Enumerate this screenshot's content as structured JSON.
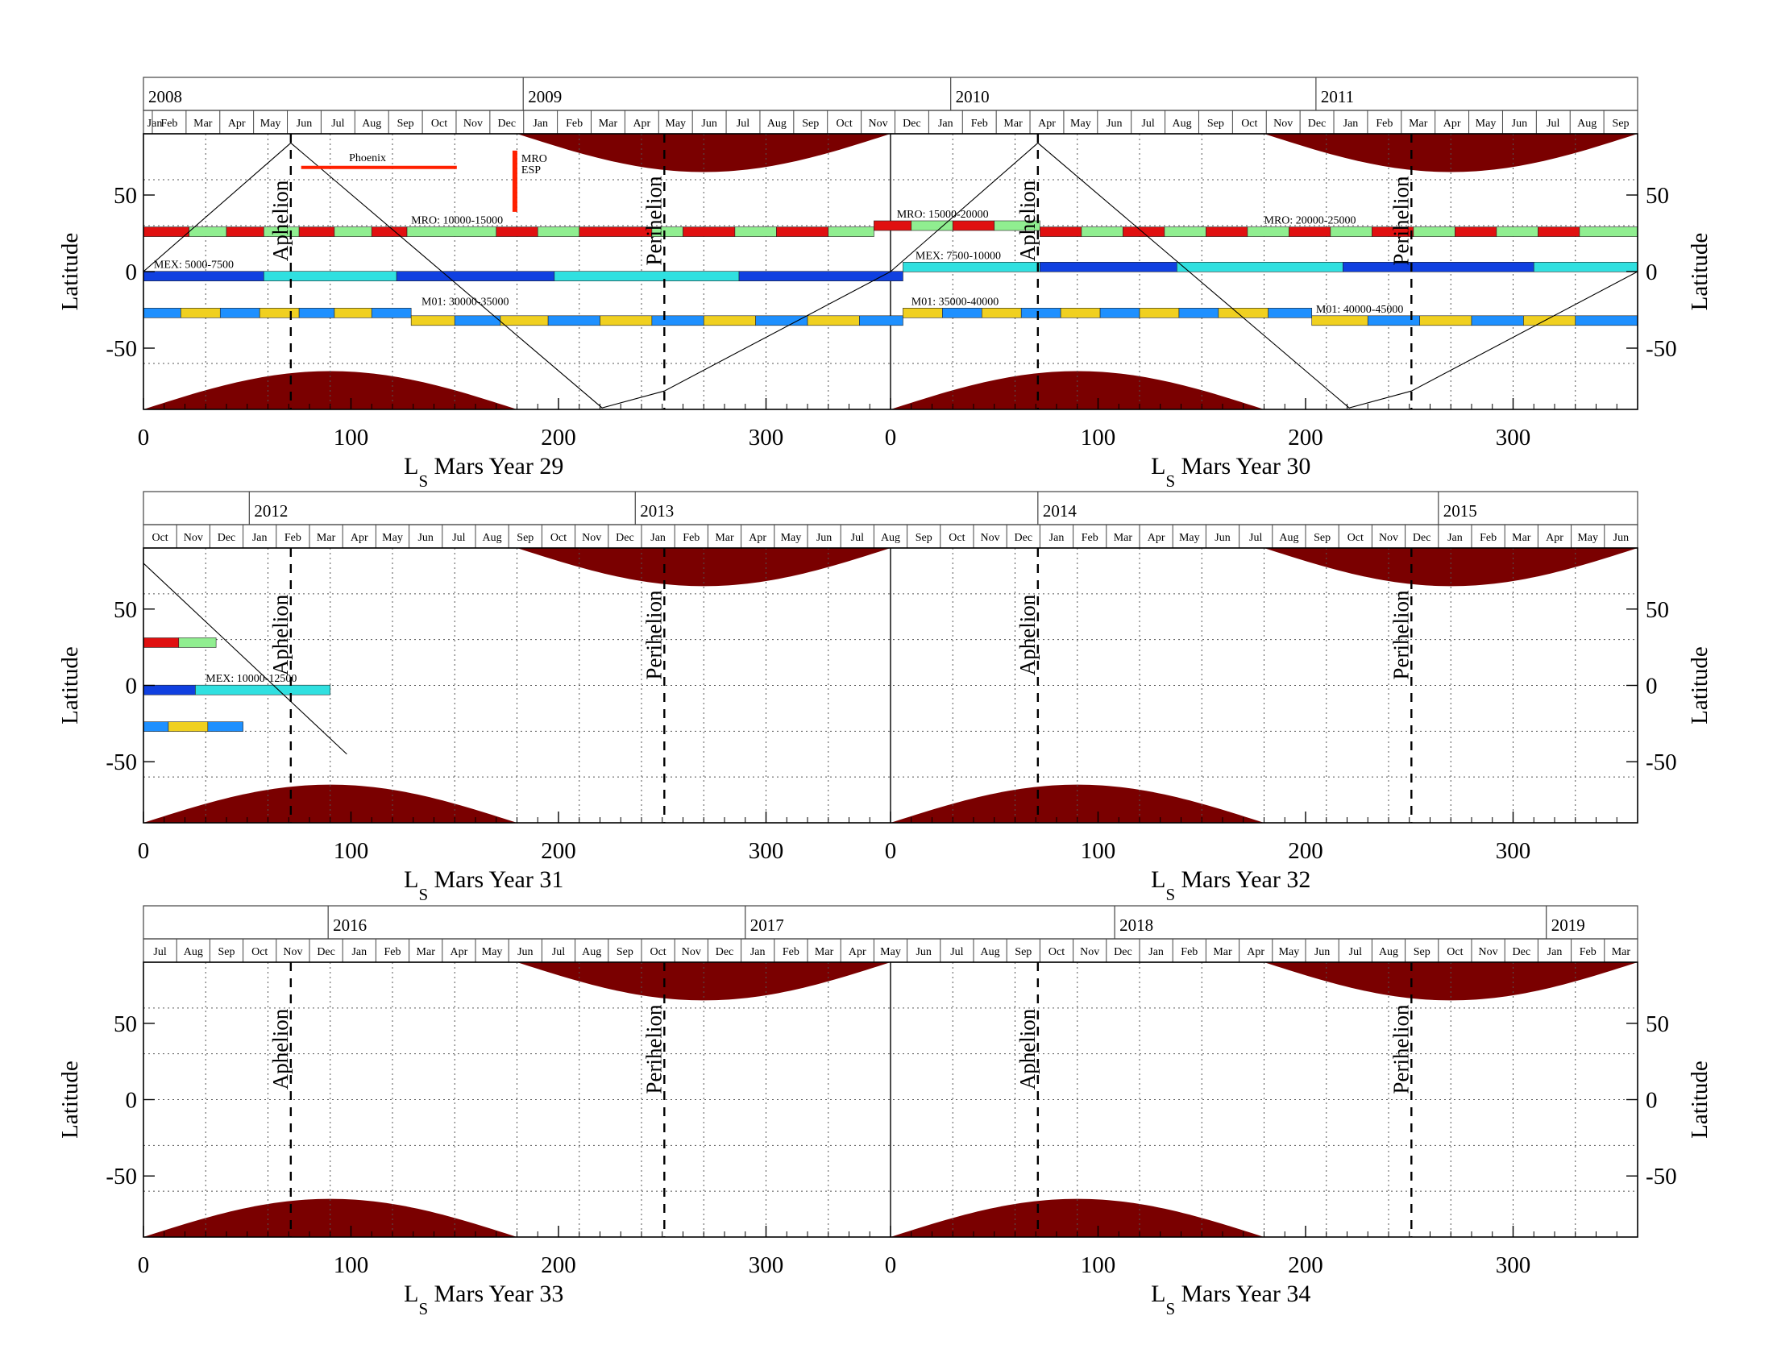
{
  "colors": {
    "polar_fill": "#7a0000",
    "mro_red": "#e01010",
    "mro_green": "#90ee90",
    "mex_blue": "#1040e0",
    "mex_cyan": "#30e0e0",
    "m01_blue": "#1e90ff",
    "m01_yellow": "#f0d020",
    "event_red": "#ff2000"
  },
  "chart_data": {
    "type": "timeline",
    "x_label_prefix": "L",
    "x_label_subscript": "S",
    "ylabel": "Latitude",
    "ylim": [
      -90,
      90
    ],
    "yticks": [
      "50",
      "0",
      "-50"
    ],
    "ytick_values": [
      50,
      0,
      -50
    ],
    "xticks": [
      "0",
      "100",
      "200",
      "300"
    ],
    "xtick_values": [
      0,
      100,
      200,
      300
    ],
    "aphelion_label": "Aphelion",
    "perihelion_label": "Perihelion",
    "aphelion_ls": 71,
    "perihelion_ls": 251,
    "north_cap_range": [
      180,
      360
    ],
    "south_cap_range": [
      0,
      180
    ],
    "polar_cap_edge_lat": 65,
    "panels": [
      {
        "mars_years": [
          "Mars Year 29",
          "Mars Year 30"
        ],
        "years": [
          {
            "label": "2008",
            "ls": -12
          },
          {
            "label": "2009",
            "ls": 183
          },
          {
            "label": "2010",
            "ls": 389
          },
          {
            "label": "2011",
            "ls": 565
          }
        ],
        "months": [
          "Jan",
          "Feb",
          "Mar",
          "Apr",
          "May",
          "Jun",
          "Jul",
          "Aug",
          "Sep",
          "Oct",
          "Nov",
          "Dec",
          "Jan",
          "Feb",
          "Mar",
          "Apr",
          "May",
          "Jun",
          "Jul",
          "Aug",
          "Sep",
          "Oct",
          "Nov",
          "Dec",
          "Jan",
          "Feb",
          "Mar",
          "Apr",
          "May",
          "Jun",
          "Jul",
          "Aug",
          "Sep",
          "Oct",
          "Nov",
          "Dec",
          "Jan",
          "Feb",
          "Mar",
          "Apr",
          "May",
          "Jun",
          "Jul",
          "Aug",
          "Sep"
        ],
        "month_start": -12,
        "month_end": 720,
        "subsolar": {
          "points": [
            [
              0,
              0
            ],
            [
              71,
              84
            ],
            [
              221,
              -89
            ],
            [
              251,
              -78
            ],
            [
              360,
              0
            ],
            [
              431,
              84
            ],
            [
              581,
              -89
            ],
            [
              611,
              -78
            ],
            [
              720,
              0
            ]
          ]
        },
        "missions": [
          {
            "label": "MRO: 10000-15000",
            "label_ls": 129,
            "lat": 26,
            "start": 0,
            "end": 360,
            "colors": [
              "mro_red",
              "mro_green"
            ],
            "segments": [
              [
                0,
                22
              ],
              [
                22,
                40
              ],
              [
                40,
                58
              ],
              [
                58,
                75
              ],
              [
                75,
                92
              ],
              [
                92,
                110
              ],
              [
                110,
                127
              ],
              [
                127,
                170
              ],
              [
                170,
                190
              ],
              [
                190,
                210
              ],
              [
                210,
                245
              ],
              [
                245,
                260
              ],
              [
                260,
                285
              ],
              [
                285,
                305
              ],
              [
                305,
                330
              ],
              [
                330,
                352
              ]
            ]
          },
          {
            "label": "MRO: 15000-20000",
            "label_ls": 363,
            "lat": 30,
            "start": 352,
            "end": 432,
            "colors": [
              "mro_red",
              "mro_green"
            ],
            "segments": [
              [
                352,
                370
              ],
              [
                370,
                390
              ],
              [
                390,
                410
              ],
              [
                410,
                432
              ]
            ]
          },
          {
            "label": "MRO: 20000-25000",
            "label_ls": 540,
            "lat": 26,
            "start": 432,
            "end": 720,
            "colors": [
              "mro_red",
              "mro_green"
            ],
            "segments": [
              [
                432,
                452
              ],
              [
                452,
                472
              ],
              [
                472,
                492
              ],
              [
                492,
                512
              ],
              [
                512,
                532
              ],
              [
                532,
                552
              ],
              [
                552,
                572
              ],
              [
                572,
                592
              ],
              [
                592,
                612
              ],
              [
                612,
                632
              ],
              [
                632,
                652
              ],
              [
                652,
                672
              ],
              [
                672,
                692
              ],
              [
                692,
                720
              ]
            ]
          },
          {
            "label": "MEX: 5000-7500",
            "label_ls": 5,
            "lat": -3,
            "start": 0,
            "end": 366,
            "colors": [
              "mex_blue",
              "mex_cyan"
            ],
            "segments": [
              [
                0,
                58
              ],
              [
                58,
                122
              ],
              [
                122,
                198
              ],
              [
                198,
                287
              ],
              [
                287,
                366
              ]
            ]
          },
          {
            "label": "MEX: 7500-10000",
            "label_ls": 372,
            "lat": 3,
            "start": 366,
            "end": 432,
            "colors": [
              "mex_cyan"
            ],
            "segments": [
              [
                366,
                432
              ]
            ]
          },
          {
            "label": "",
            "label_ls": 0,
            "lat": 3,
            "start": 432,
            "end": 720,
            "colors": [
              "mex_blue",
              "mex_cyan"
            ],
            "segments": [
              [
                432,
                498
              ],
              [
                498,
                578
              ],
              [
                578,
                670
              ],
              [
                670,
                720
              ]
            ]
          },
          {
            "label": "M01: 30000-35000",
            "label_ls": 134,
            "lat": -27,
            "start": 0,
            "end": 129,
            "colors": [
              "m01_blue",
              "m01_yellow"
            ],
            "segments": [
              [
                0,
                18
              ],
              [
                18,
                37
              ],
              [
                37,
                56
              ],
              [
                56,
                75
              ],
              [
                75,
                92
              ],
              [
                92,
                110
              ],
              [
                110,
                129
              ]
            ]
          },
          {
            "label": "",
            "label_ls": 0,
            "lat": -32,
            "start": 129,
            "end": 366,
            "colors": [
              "m01_yellow",
              "m01_blue"
            ],
            "segments": [
              [
                129,
                150
              ],
              [
                150,
                172
              ],
              [
                172,
                195
              ],
              [
                195,
                220
              ],
              [
                220,
                245
              ],
              [
                245,
                270
              ],
              [
                270,
                295
              ],
              [
                295,
                320
              ],
              [
                320,
                345
              ],
              [
                345,
                366
              ]
            ]
          },
          {
            "label": "M01: 35000-40000",
            "label_ls": 370,
            "lat": -27,
            "start": 366,
            "end": 563,
            "colors": [
              "m01_yellow",
              "m01_blue"
            ],
            "segments": [
              [
                366,
                385
              ],
              [
                385,
                404
              ],
              [
                404,
                423
              ],
              [
                423,
                442
              ],
              [
                442,
                461
              ],
              [
                461,
                480
              ],
              [
                480,
                499
              ],
              [
                499,
                518
              ],
              [
                518,
                542
              ],
              [
                542,
                563
              ]
            ]
          },
          {
            "label": "M01: 40000-45000",
            "label_ls": 565,
            "lat": -32,
            "start": 563,
            "end": 720,
            "colors": [
              "m01_yellow",
              "m01_blue"
            ],
            "segments": [
              [
                563,
                590
              ],
              [
                590,
                615
              ],
              [
                615,
                640
              ],
              [
                640,
                665
              ],
              [
                665,
                690
              ],
              [
                690,
                720
              ]
            ]
          }
        ],
        "events": [
          {
            "label": "Phoenix",
            "kind": "hline",
            "lat": 68,
            "start": 76,
            "end": 151,
            "label_ls": 108
          },
          {
            "label": "MRO",
            "label2": "ESP",
            "kind": "vline",
            "ls": 179,
            "lat_top": 79,
            "lat_bottom": 39
          }
        ]
      },
      {
        "mars_years": [
          "Mars Year 31",
          "Mars Year 32"
        ],
        "years": [
          {
            "label": "2012",
            "ls": 51
          },
          {
            "label": "2013",
            "ls": 237
          },
          {
            "label": "2014",
            "ls": 431
          },
          {
            "label": "2015",
            "ls": 624
          }
        ],
        "months": [
          "Oct",
          "Nov",
          "Dec",
          "Jan",
          "Feb",
          "Mar",
          "Apr",
          "May",
          "Jun",
          "Jul",
          "Aug",
          "Sep",
          "Oct",
          "Nov",
          "Dec",
          "Jan",
          "Feb",
          "Mar",
          "Apr",
          "May",
          "Jun",
          "Jul",
          "Aug",
          "Sep",
          "Oct",
          "Nov",
          "Dec",
          "Jan",
          "Feb",
          "Mar",
          "Apr",
          "May",
          "Jun",
          "Jul",
          "Aug",
          "Sep",
          "Oct",
          "Nov",
          "Dec",
          "Jan",
          "Feb",
          "Mar",
          "Apr",
          "May",
          "Jun"
        ],
        "month_start": 0,
        "month_end": 720,
        "subsolar": {
          "points": [
            [
              0,
              80
            ],
            [
              98,
              -45
            ]
          ]
        },
        "missions": [
          {
            "label": "",
            "label_ls": 0,
            "lat": 28,
            "start": 0,
            "end": 35,
            "colors": [
              "mro_red",
              "mro_green"
            ],
            "segments": [
              [
                0,
                17
              ],
              [
                17,
                35
              ]
            ]
          },
          {
            "label": "MEX: 10000-12500",
            "label_ls": 30,
            "lat": -3,
            "start": 0,
            "end": 90,
            "colors": [
              "mex_blue",
              "mex_cyan"
            ],
            "segments": [
              [
                0,
                25
              ],
              [
                25,
                90
              ]
            ]
          },
          {
            "label": "",
            "label_ls": 0,
            "lat": -27,
            "start": 0,
            "end": 48,
            "colors": [
              "m01_blue",
              "m01_yellow"
            ],
            "segments": [
              [
                0,
                12
              ],
              [
                12,
                31
              ],
              [
                31,
                48
              ]
            ]
          }
        ],
        "events": []
      },
      {
        "mars_years": [
          "Mars Year 33",
          "Mars Year 34"
        ],
        "years": [
          {
            "label": "2016",
            "ls": 89
          },
          {
            "label": "2017",
            "ls": 290
          },
          {
            "label": "2018",
            "ls": 468
          },
          {
            "label": "2019",
            "ls": 676
          }
        ],
        "months": [
          "Jul",
          "Aug",
          "Sep",
          "Oct",
          "Nov",
          "Dec",
          "Jan",
          "Feb",
          "Mar",
          "Apr",
          "May",
          "Jun",
          "Jul",
          "Aug",
          "Sep",
          "Oct",
          "Nov",
          "Dec",
          "Jan",
          "Feb",
          "Mar",
          "Apr",
          "May",
          "Jun",
          "Jul",
          "Aug",
          "Sep",
          "Oct",
          "Nov",
          "Dec",
          "Jan",
          "Feb",
          "Mar",
          "Apr",
          "May",
          "Jun",
          "Jul",
          "Aug",
          "Sep",
          "Oct",
          "Nov",
          "Dec",
          "Jan",
          "Feb",
          "Mar"
        ],
        "month_start": 0,
        "month_end": 720,
        "subsolar": {
          "points": []
        },
        "missions": [],
        "events": []
      }
    ]
  }
}
